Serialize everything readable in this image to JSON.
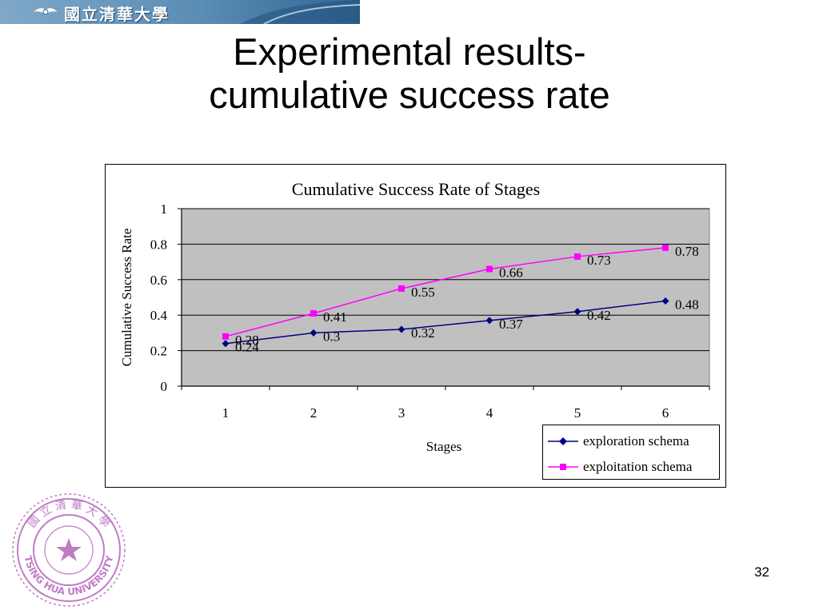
{
  "banner": {
    "university_name": "國立清華大學",
    "colors": {
      "primary": "#5b8db5",
      "text": "#ffffff"
    }
  },
  "slide": {
    "title_line1": "Experimental results-",
    "title_line2": "cumulative success rate",
    "page_number": "32"
  },
  "seal": {
    "text_top": "國 立 清 華 大 學",
    "text_bottom": "TSING HUA UNIVERSITY",
    "color": "#c07cc4"
  },
  "chart_data": {
    "type": "line",
    "title": "Cumulative Success Rate of Stages",
    "xlabel": "Stages",
    "ylabel": "Cumulative Success Rate",
    "categories": [
      "1",
      "2",
      "3",
      "4",
      "5",
      "6"
    ],
    "ylim": [
      0,
      1
    ],
    "yticks": [
      "0",
      "0.2",
      "0.4",
      "0.6",
      "0.8",
      "1"
    ],
    "grid": true,
    "plot_background": "#c0c0c0",
    "legend_position": "bottom-right",
    "series": [
      {
        "name": "exploration schema",
        "values": [
          0.24,
          0.3,
          0.32,
          0.37,
          0.42,
          0.48
        ],
        "labels": [
          "0.24",
          "0.3",
          "0.32",
          "0.37",
          "0.42",
          "0.48"
        ],
        "color": "#000080",
        "marker": "diamond"
      },
      {
        "name": "exploitation schema",
        "values": [
          0.28,
          0.41,
          0.55,
          0.66,
          0.73,
          0.78
        ],
        "labels": [
          "0.28",
          "0.41",
          "0.55",
          "0.66",
          "0.73",
          "0.78"
        ],
        "color": "#ff00ff",
        "marker": "square"
      }
    ]
  }
}
